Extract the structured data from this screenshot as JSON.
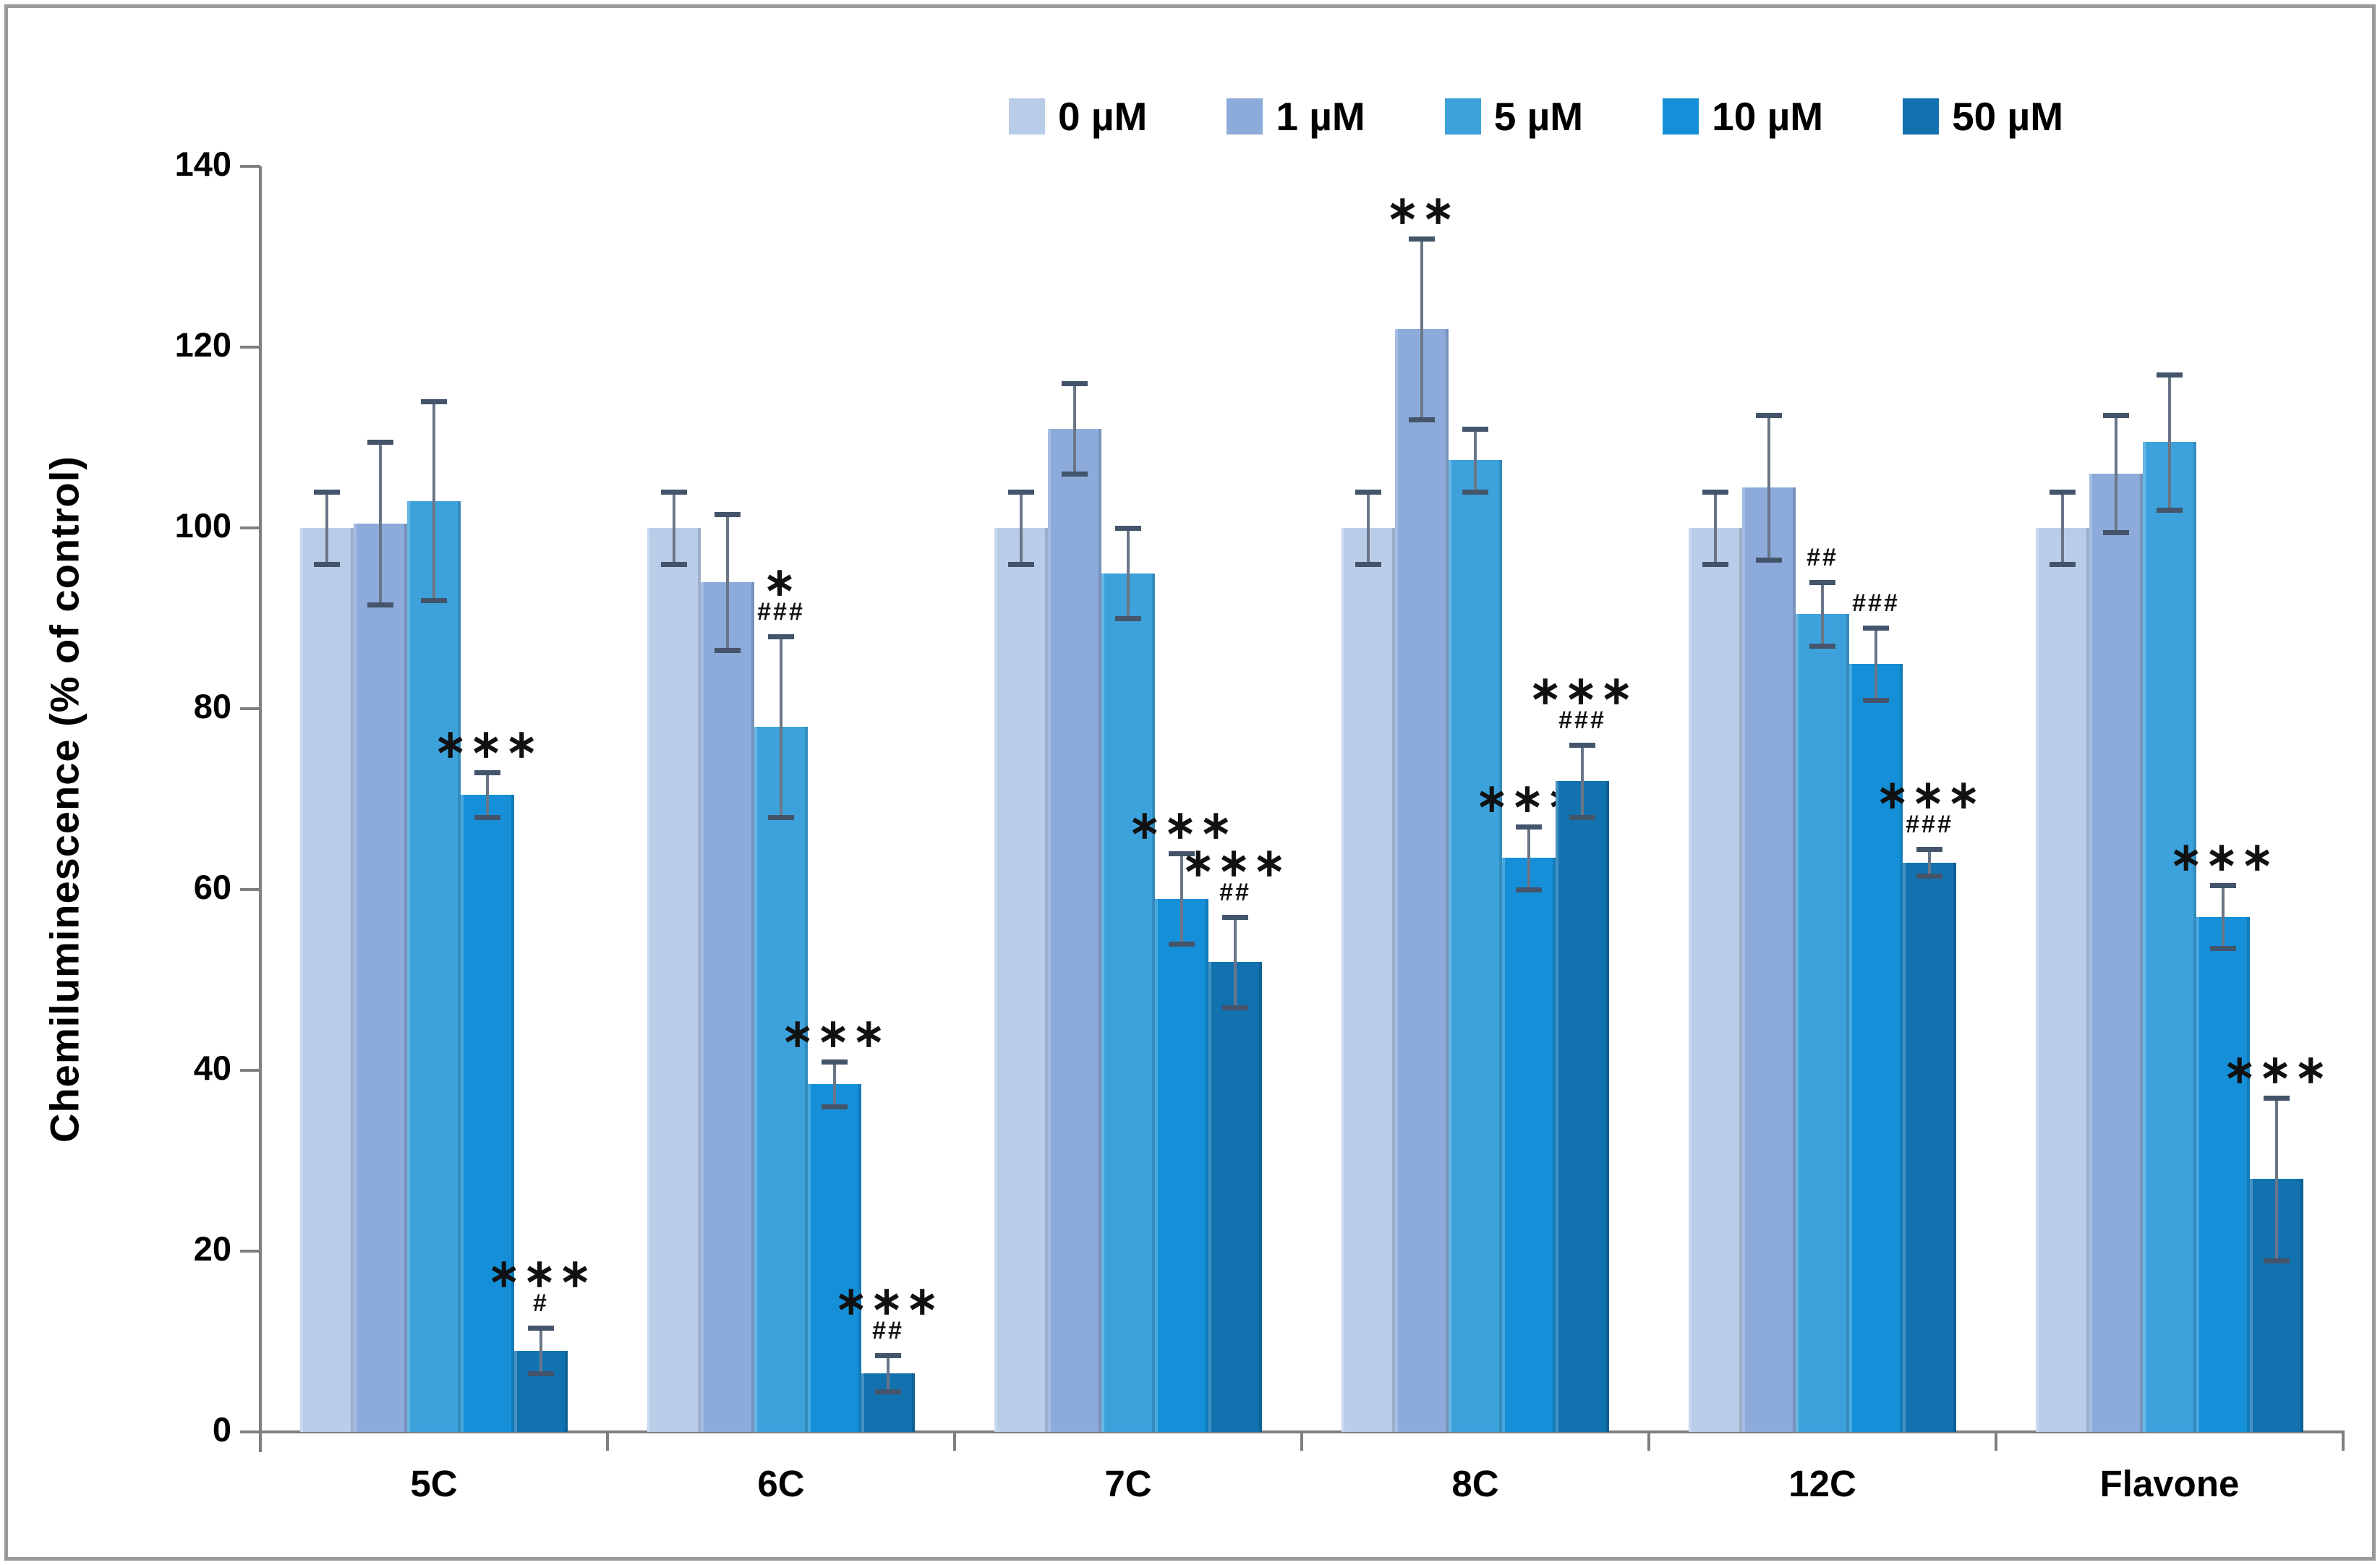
{
  "figure": {
    "border_color": "#9a9a9a",
    "background": "#ffffff",
    "axis_color": "#7f7f7f",
    "error_bar_color": "#44546a"
  },
  "chart_data": {
    "type": "bar",
    "title": "",
    "xlabel": "",
    "ylabel": "Chemiluminescence (% of control)",
    "ylim": [
      0,
      140
    ],
    "yticks": [
      0,
      20,
      40,
      60,
      80,
      100,
      120,
      140
    ],
    "grid": false,
    "legend_position": "top-right",
    "categories": [
      "5C",
      "6C",
      "7C",
      "8C",
      "12C",
      "Flavone"
    ],
    "series": [
      {
        "name": "0 µM",
        "color": "#b9cde9",
        "values": [
          100,
          100,
          100,
          100,
          100,
          100
        ],
        "errors": [
          4,
          4,
          4,
          4,
          4,
          4
        ],
        "stars": [
          "",
          "",
          "",
          "",
          "",
          ""
        ],
        "hashes": [
          "",
          "",
          "",
          "",
          "",
          ""
        ]
      },
      {
        "name": "1 µM",
        "color": "#8cabdb",
        "values": [
          100.5,
          94,
          111,
          122,
          104.5,
          106
        ],
        "errors": [
          9,
          7.5,
          5,
          10,
          8,
          6.5
        ],
        "stars": [
          "",
          "",
          "",
          "**",
          "",
          ""
        ],
        "hashes": [
          "",
          "",
          "",
          "",
          "",
          ""
        ]
      },
      {
        "name": "5 µM",
        "color": "#3da2db",
        "values": [
          103,
          78,
          95,
          107.5,
          90.5,
          109.5
        ],
        "errors": [
          11,
          10,
          5,
          3.5,
          3.5,
          7.5
        ],
        "stars": [
          "",
          "*",
          "",
          "",
          "",
          ""
        ],
        "hashes": [
          "",
          "###",
          "",
          "",
          "##",
          ""
        ]
      },
      {
        "name": "10 µM",
        "color": "#1590d8",
        "values": [
          70.5,
          38.5,
          59,
          63.5,
          85,
          57
        ],
        "errors": [
          2.5,
          2.5,
          5,
          3.5,
          4,
          3.5
        ],
        "stars": [
          "***",
          "***",
          "***",
          "***",
          "",
          "***"
        ],
        "hashes": [
          "",
          "",
          "",
          "",
          "###",
          ""
        ]
      },
      {
        "name": "50 µM",
        "color": "#1272b0",
        "values": [
          9,
          6.5,
          52,
          72,
          63,
          28
        ],
        "errors": [
          2.5,
          2,
          5,
          4,
          1.5,
          9
        ],
        "stars": [
          "***",
          "***",
          "***",
          "***",
          "***",
          "***"
        ],
        "hashes": [
          "#",
          "##",
          "##",
          "###",
          "###",
          ""
        ]
      }
    ]
  }
}
